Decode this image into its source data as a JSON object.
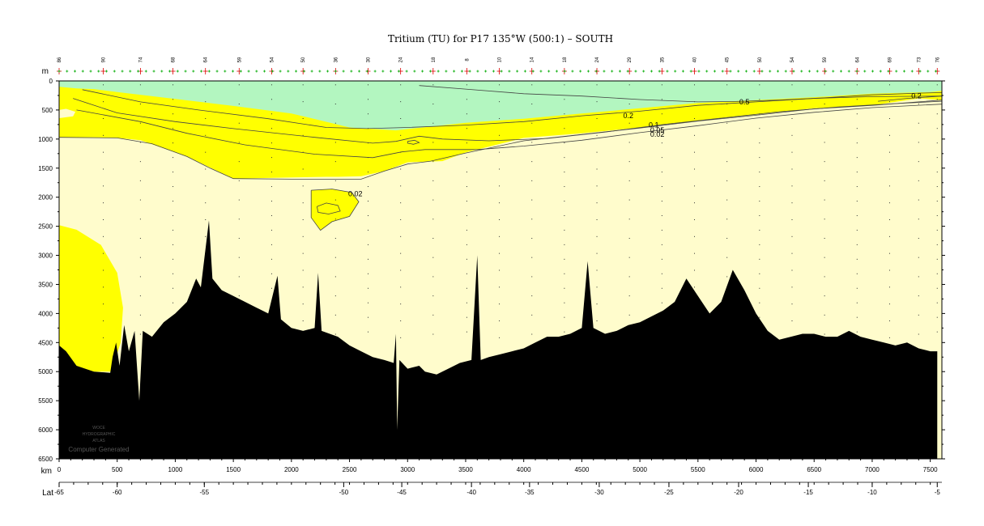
{
  "chart_data": {
    "type": "contour-section",
    "title": "Tritium (TU) for P17 135°W (500:1) – SOUTH",
    "x_unit": "km",
    "y_unit": "m",
    "lat_unit": "Lat",
    "xlim": [
      0,
      7600
    ],
    "ylim": [
      0,
      6500
    ],
    "x_ticks": [
      0,
      500,
      1000,
      1500,
      2000,
      2500,
      3000,
      3500,
      4000,
      4500,
      5000,
      5500,
      6000,
      6500,
      7000,
      7500
    ],
    "y_ticks": [
      0,
      500,
      1000,
      1500,
      2000,
      2500,
      3000,
      3500,
      4000,
      4500,
      5000,
      5500,
      6000,
      6500
    ],
    "lat_ticks": [
      {
        "km": 0,
        "label": "-65"
      },
      {
        "km": 500,
        "label": "-60"
      },
      {
        "km": 1250,
        "label": "-55"
      },
      {
        "km": 2450,
        "label": "-50"
      },
      {
        "km": 2950,
        "label": "-45"
      },
      {
        "km": 3550,
        "label": "-40"
      },
      {
        "km": 4050,
        "label": "-35"
      },
      {
        "km": 4650,
        "label": "-30"
      },
      {
        "km": 5250,
        "label": "-25"
      },
      {
        "km": 5850,
        "label": "-20"
      },
      {
        "km": 6450,
        "label": "-15"
      },
      {
        "km": 7000,
        "label": "-10"
      },
      {
        "km": 7560,
        "label": "-5"
      }
    ],
    "station_labels": [
      {
        "km": 0,
        "label": "86"
      },
      {
        "km": 380,
        "label": "90"
      },
      {
        "km": 700,
        "label": "74"
      },
      {
        "km": 980,
        "label": "68"
      },
      {
        "km": 1260,
        "label": "64"
      },
      {
        "km": 1550,
        "label": "59"
      },
      {
        "km": 1830,
        "label": "54"
      },
      {
        "km": 2100,
        "label": "50"
      },
      {
        "km": 2380,
        "label": "36"
      },
      {
        "km": 2660,
        "label": "30"
      },
      {
        "km": 2940,
        "label": "24"
      },
      {
        "km": 3220,
        "label": "18"
      },
      {
        "km": 3510,
        "label": "8"
      },
      {
        "km": 3790,
        "label": "10"
      },
      {
        "km": 4070,
        "label": "14"
      },
      {
        "km": 4350,
        "label": "18"
      },
      {
        "km": 4630,
        "label": "24"
      },
      {
        "km": 4910,
        "label": "29"
      },
      {
        "km": 5190,
        "label": "35"
      },
      {
        "km": 5470,
        "label": "40"
      },
      {
        "km": 5750,
        "label": "45"
      },
      {
        "km": 6030,
        "label": "50"
      },
      {
        "km": 6310,
        "label": "54"
      },
      {
        "km": 6590,
        "label": "59"
      },
      {
        "km": 6870,
        "label": "64"
      },
      {
        "km": 7150,
        "label": "69"
      },
      {
        "km": 7400,
        "label": "73"
      },
      {
        "km": 7560,
        "label": "76"
      }
    ],
    "contour_levels": [
      0.02,
      0.05,
      0.1,
      0.2,
      0.5
    ],
    "colors": {
      "background": "#fffccc",
      "band_low": "#ffff00",
      "band_high": "#b3f6c0",
      "bathymetry": "#000000",
      "contour": "#444444"
    },
    "regions": {
      "high": [
        [
          0,
          100
        ],
        [
          150,
          130
        ],
        [
          300,
          140
        ],
        [
          500,
          190
        ],
        [
          1000,
          310
        ],
        [
          1500,
          430
        ],
        [
          2000,
          560
        ],
        [
          2500,
          800
        ],
        [
          2900,
          850
        ],
        [
          3500,
          720
        ],
        [
          4000,
          650
        ],
        [
          4500,
          560
        ],
        [
          5000,
          470
        ],
        [
          5500,
          380
        ],
        [
          6000,
          330
        ],
        [
          6500,
          280
        ],
        [
          7000,
          220
        ],
        [
          7500,
          190
        ],
        [
          7600,
          170
        ],
        [
          7600,
          0
        ],
        [
          0,
          0
        ]
      ],
      "low_upper": [
        [
          0,
          0
        ],
        [
          7600,
          0
        ],
        [
          7600,
          330
        ],
        [
          7400,
          300
        ],
        [
          7000,
          420
        ],
        [
          6500,
          470
        ],
        [
          6000,
          580
        ],
        [
          5500,
          680
        ],
        [
          5000,
          800
        ],
        [
          4500,
          900
        ],
        [
          4000,
          980
        ],
        [
          3500,
          1230
        ],
        [
          3300,
          1380
        ],
        [
          3000,
          1400
        ],
        [
          2800,
          1550
        ],
        [
          2600,
          1640
        ],
        [
          2400,
          1650
        ],
        [
          2300,
          1650
        ],
        [
          1500,
          1680
        ],
        [
          1100,
          1300
        ],
        [
          700,
          1020
        ],
        [
          500,
          980
        ],
        [
          300,
          970
        ],
        [
          0,
          970
        ]
      ],
      "low_blob_mid": [
        [
          2170,
          1880
        ],
        [
          2350,
          1860
        ],
        [
          2520,
          1920
        ],
        [
          2580,
          2080
        ],
        [
          2500,
          2330
        ],
        [
          2350,
          2420
        ],
        [
          2250,
          2570
        ],
        [
          2170,
          2350
        ],
        [
          2170,
          2050
        ]
      ],
      "low_blob_deep": [
        [
          0,
          2480
        ],
        [
          150,
          2560
        ],
        [
          360,
          2820
        ],
        [
          500,
          3300
        ],
        [
          550,
          3900
        ],
        [
          530,
          4500
        ],
        [
          450,
          5000
        ],
        [
          0,
          5000
        ]
      ],
      "high_blob_left": [
        [
          0,
          500
        ],
        [
          60,
          480
        ],
        [
          140,
          530
        ],
        [
          120,
          610
        ],
        [
          0,
          640
        ]
      ]
    },
    "contours": [
      {
        "label": "0.5",
        "points": [
          [
            3100,
            80
          ],
          [
            3500,
            140
          ],
          [
            4000,
            220
          ],
          [
            4500,
            260
          ],
          [
            5000,
            320
          ],
          [
            5500,
            360
          ],
          [
            5800,
            355
          ],
          [
            6200,
            330
          ],
          [
            6600,
            290
          ],
          [
            7000,
            240
          ],
          [
            7400,
            210
          ],
          [
            7600,
            200
          ]
        ],
        "label_at": [
          5900,
          365
        ]
      },
      {
        "label": "0.2",
        "points": [
          [
            7050,
            350
          ],
          [
            7300,
            300
          ],
          [
            7600,
            260
          ]
        ],
        "label_at": [
          7380,
          255
        ]
      },
      {
        "label": "0.2",
        "points": [
          [
            200,
            150
          ],
          [
            700,
            360
          ],
          [
            1200,
            500
          ],
          [
            1800,
            650
          ],
          [
            2300,
            800
          ],
          [
            2650,
            820
          ],
          [
            3000,
            800
          ],
          [
            3500,
            760
          ],
          [
            4000,
            700
          ],
          [
            4500,
            600
          ],
          [
            5000,
            520
          ],
          [
            5500,
            420
          ],
          [
            6000,
            360
          ],
          [
            6500,
            300
          ],
          [
            7000,
            270
          ],
          [
            7600,
            260
          ]
        ],
        "label_at": [
          4900,
          600
        ]
      },
      {
        "label": "0.1",
        "points": [
          [
            120,
            300
          ],
          [
            500,
            550
          ],
          [
            1000,
            700
          ],
          [
            1500,
            820
          ],
          [
            2200,
            970
          ],
          [
            2700,
            1070
          ],
          [
            2900,
            1040
          ],
          [
            3100,
            950
          ],
          [
            3300,
            1000
          ],
          [
            3700,
            1030
          ],
          [
            4200,
            990
          ],
          [
            4700,
            880
          ],
          [
            5200,
            750
          ],
          [
            5700,
            640
          ],
          [
            6200,
            530
          ],
          [
            6700,
            450
          ],
          [
            7200,
            390
          ],
          [
            7600,
            350
          ]
        ],
        "label_at": [
          5120,
          760
        ]
      },
      {
        "label": "0.05",
        "points": [
          [
            150,
            500
          ],
          [
            700,
            700
          ],
          [
            1100,
            900
          ],
          [
            1600,
            1100
          ],
          [
            2200,
            1260
          ],
          [
            2700,
            1320
          ],
          [
            2950,
            1220
          ],
          [
            3150,
            1180
          ],
          [
            3600,
            1180
          ],
          [
            4000,
            1120
          ],
          [
            4500,
            1020
          ],
          [
            5000,
            890
          ],
          [
            5500,
            770
          ],
          [
            6000,
            640
          ],
          [
            6500,
            540
          ],
          [
            7000,
            460
          ],
          [
            7600,
            400
          ]
        ],
        "label_at": [
          5150,
          850
        ]
      },
      {
        "label": "0.02",
        "points": [
          [
            0,
            970
          ],
          [
            500,
            980
          ],
          [
            800,
            1080
          ],
          [
            1100,
            1300
          ],
          [
            1300,
            1500
          ],
          [
            1500,
            1680
          ],
          [
            2000,
            1690
          ],
          [
            2600,
            1690
          ],
          [
            2800,
            1550
          ],
          [
            3000,
            1430
          ],
          [
            3200,
            1380
          ],
          [
            3500,
            1240
          ],
          [
            4000,
            1030
          ],
          [
            4500,
            920
          ],
          [
            5000,
            810
          ],
          [
            5500,
            690
          ],
          [
            6000,
            590
          ],
          [
            6500,
            480
          ],
          [
            7000,
            420
          ],
          [
            7600,
            330
          ]
        ],
        "label_at": [
          5150,
          920
        ]
      },
      {
        "label": "0.02",
        "points": [
          [
            2170,
            1880
          ],
          [
            2350,
            1860
          ],
          [
            2520,
            1920
          ],
          [
            2580,
            2080
          ],
          [
            2500,
            2330
          ],
          [
            2350,
            2420
          ],
          [
            2250,
            2570
          ],
          [
            2170,
            2350
          ],
          [
            2170,
            2050
          ],
          [
            2170,
            1880
          ]
        ],
        "label_at": [
          2550,
          1940
        ]
      },
      {
        "label": "",
        "points": [
          [
            2220,
            2160
          ],
          [
            2300,
            2100
          ],
          [
            2400,
            2140
          ],
          [
            2420,
            2240
          ],
          [
            2320,
            2290
          ],
          [
            2230,
            2260
          ],
          [
            2220,
            2160
          ]
        ],
        "label_at": null
      },
      {
        "label": "",
        "points": [
          [
            3000,
            1040
          ],
          [
            3060,
            1020
          ],
          [
            3100,
            1060
          ],
          [
            3050,
            1090
          ],
          [
            3000,
            1070
          ],
          [
            3000,
            1040
          ]
        ],
        "label_at": null
      }
    ],
    "bathymetry": [
      [
        0,
        4550
      ],
      [
        60,
        4650
      ],
      [
        150,
        4900
      ],
      [
        300,
        5000
      ],
      [
        440,
        5020
      ],
      [
        460,
        4750
      ],
      [
        490,
        4500
      ],
      [
        520,
        4900
      ],
      [
        560,
        4200
      ],
      [
        600,
        4650
      ],
      [
        650,
        4300
      ],
      [
        690,
        5500
      ],
      [
        720,
        4300
      ],
      [
        800,
        4400
      ],
      [
        900,
        4150
      ],
      [
        1000,
        4000
      ],
      [
        1100,
        3800
      ],
      [
        1180,
        3400
      ],
      [
        1220,
        3550
      ],
      [
        1290,
        2400
      ],
      [
        1320,
        3400
      ],
      [
        1400,
        3600
      ],
      [
        1500,
        3700
      ],
      [
        1600,
        3800
      ],
      [
        1700,
        3900
      ],
      [
        1800,
        4000
      ],
      [
        1880,
        3350
      ],
      [
        1910,
        4100
      ],
      [
        2000,
        4250
      ],
      [
        2100,
        4300
      ],
      [
        2200,
        4250
      ],
      [
        2230,
        3300
      ],
      [
        2260,
        4300
      ],
      [
        2400,
        4400
      ],
      [
        2500,
        4550
      ],
      [
        2600,
        4650
      ],
      [
        2700,
        4750
      ],
      [
        2800,
        4800
      ],
      [
        2880,
        4850
      ],
      [
        2900,
        4350
      ],
      [
        2910,
        6000
      ],
      [
        2930,
        4800
      ],
      [
        3000,
        4950
      ],
      [
        3100,
        4900
      ],
      [
        3150,
        5000
      ],
      [
        3250,
        5050
      ],
      [
        3350,
        4950
      ],
      [
        3450,
        4850
      ],
      [
        3550,
        4800
      ],
      [
        3600,
        3000
      ],
      [
        3630,
        4800
      ],
      [
        3700,
        4750
      ],
      [
        3800,
        4700
      ],
      [
        3900,
        4650
      ],
      [
        4000,
        4600
      ],
      [
        4100,
        4500
      ],
      [
        4200,
        4400
      ],
      [
        4300,
        4400
      ],
      [
        4400,
        4350
      ],
      [
        4500,
        4250
      ],
      [
        4550,
        3100
      ],
      [
        4600,
        4250
      ],
      [
        4700,
        4350
      ],
      [
        4800,
        4300
      ],
      [
        4900,
        4200
      ],
      [
        5000,
        4150
      ],
      [
        5100,
        4050
      ],
      [
        5200,
        3950
      ],
      [
        5300,
        3800
      ],
      [
        5400,
        3400
      ],
      [
        5500,
        3700
      ],
      [
        5600,
        4000
      ],
      [
        5700,
        3800
      ],
      [
        5800,
        3250
      ],
      [
        5900,
        3600
      ],
      [
        6000,
        4000
      ],
      [
        6100,
        4300
      ],
      [
        6200,
        4450
      ],
      [
        6300,
        4400
      ],
      [
        6400,
        4350
      ],
      [
        6500,
        4350
      ],
      [
        6600,
        4400
      ],
      [
        6700,
        4400
      ],
      [
        6800,
        4300
      ],
      [
        6900,
        4400
      ],
      [
        7000,
        4450
      ],
      [
        7100,
        4500
      ],
      [
        7200,
        4550
      ],
      [
        7300,
        4500
      ],
      [
        7400,
        4600
      ],
      [
        7500,
        4650
      ],
      [
        7560,
        4650
      ]
    ],
    "bottom_ruler_label_set": "km"
  },
  "logo": {
    "lines": [
      "WOCE",
      "HYDROGRAPHIC",
      "ATLAS"
    ],
    "caption": "Computer Generated"
  }
}
